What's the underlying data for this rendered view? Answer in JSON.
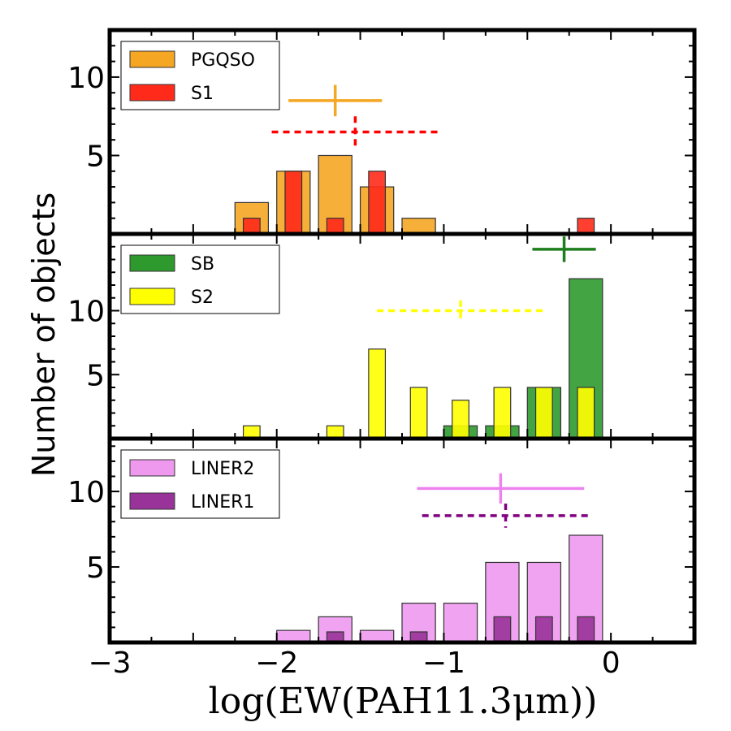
{
  "figure": {
    "ylabel": "Number of objects",
    "xlabel": "log(EW(PAH11.3μm))",
    "xlim": [
      -3,
      0.5
    ],
    "xticks": [
      -3,
      -2,
      -1,
      0
    ],
    "xtick_labels": [
      "−3",
      "−2",
      "−1",
      "0"
    ]
  },
  "chart_data": [
    {
      "type": "bar",
      "panel": "top",
      "ylim": [
        0,
        13
      ],
      "yticks": [
        5,
        10
      ],
      "ytick_labels": [
        "5",
        "10"
      ],
      "legend": {
        "placement": "top-left",
        "entries": [
          "PGQSO",
          "S1"
        ]
      },
      "bin_edges": [
        -2.25,
        -2.0,
        -1.75,
        -1.5,
        -1.25,
        -1.0
      ],
      "series": [
        {
          "name": "PGQSO",
          "color": "#f5a623",
          "style": "wide",
          "bars": [
            {
              "x0": -2.25,
              "x1": -2.05,
              "y": 2
            },
            {
              "x0": -2.0,
              "x1": -1.8,
              "y": 4
            },
            {
              "x0": -1.75,
              "x1": -1.55,
              "y": 5
            },
            {
              "x0": -1.5,
              "x1": -1.3,
              "y": 3
            },
            {
              "x0": -1.25,
              "x1": -1.05,
              "y": 1
            }
          ]
        },
        {
          "name": "S1",
          "color": "#ff2a1a",
          "style": "narrow",
          "bars": [
            {
              "x0": -2.2,
              "x1": -2.1,
              "y": 1
            },
            {
              "x0": -1.95,
              "x1": -1.85,
              "y": 4
            },
            {
              "x0": -1.7,
              "x1": -1.6,
              "y": 1
            },
            {
              "x0": -1.45,
              "x1": -1.35,
              "y": 4
            },
            {
              "x0": -0.2,
              "x1": -0.1,
              "y": 1
            }
          ]
        }
      ],
      "errorbars": [
        {
          "series": "PGQSO",
          "color": "#f5a623",
          "style": "solid",
          "x": -1.65,
          "y": 8.5,
          "xerr": 0.28,
          "yerr": 1.0
        },
        {
          "series": "S1",
          "color": "#ff0000",
          "style": "dashed",
          "x": -1.53,
          "y": 6.5,
          "xerr": 0.5,
          "yerr": 1.0
        }
      ]
    },
    {
      "type": "bar",
      "panel": "middle",
      "ylim": [
        0,
        16
      ],
      "yticks": [
        5,
        10
      ],
      "ytick_labels": [
        "5",
        "10"
      ],
      "legend": {
        "placement": "top-left",
        "entries": [
          "SB",
          "S2"
        ]
      },
      "series": [
        {
          "name": "SB",
          "color": "#2e9a2e",
          "style": "wide",
          "bars": [
            {
              "x0": -1.0,
              "x1": -0.8,
              "y": 1
            },
            {
              "x0": -0.75,
              "x1": -0.55,
              "y": 1
            },
            {
              "x0": -0.5,
              "x1": -0.3,
              "y": 4
            },
            {
              "x0": -0.25,
              "x1": -0.05,
              "y": 12.5
            }
          ]
        },
        {
          "name": "S2",
          "color": "#ffff00",
          "style": "narrow",
          "bars": [
            {
              "x0": -2.2,
              "x1": -2.1,
              "y": 1
            },
            {
              "x0": -1.7,
              "x1": -1.6,
              "y": 1
            },
            {
              "x0": -1.45,
              "x1": -1.35,
              "y": 7
            },
            {
              "x0": -1.2,
              "x1": -1.1,
              "y": 4
            },
            {
              "x0": -0.95,
              "x1": -0.85,
              "y": 3
            },
            {
              "x0": -0.7,
              "x1": -0.6,
              "y": 4
            },
            {
              "x0": -0.45,
              "x1": -0.35,
              "y": 4
            },
            {
              "x0": -0.2,
              "x1": -0.1,
              "y": 4
            }
          ]
        }
      ],
      "errorbars": [
        {
          "series": "SB",
          "color": "#1e7e1e",
          "style": "solid",
          "x": -0.28,
          "y": 14.8,
          "xerr": 0.19,
          "yerr": 1.0
        },
        {
          "series": "S2",
          "color": "#ffff00",
          "style": "dashed",
          "x": -0.9,
          "y": 10.0,
          "xerr": 0.5,
          "yerr": 0.8
        }
      ]
    },
    {
      "type": "bar",
      "panel": "bottom",
      "ylim": [
        0,
        13.5
      ],
      "yticks": [
        5,
        10
      ],
      "ytick_labels": [
        "5",
        "10"
      ],
      "legend": {
        "placement": "top-left",
        "entries": [
          "LINER2",
          "LINER1"
        ]
      },
      "series": [
        {
          "name": "LINER2",
          "color": "#ee99ee",
          "style": "wide",
          "bars": [
            {
              "x0": -2.0,
              "x1": -1.8,
              "y": 0.8
            },
            {
              "x0": -1.75,
              "x1": -1.55,
              "y": 1.7
            },
            {
              "x0": -1.5,
              "x1": -1.3,
              "y": 0.8
            },
            {
              "x0": -1.25,
              "x1": -1.05,
              "y": 2.6
            },
            {
              "x0": -1.0,
              "x1": -0.8,
              "y": 2.6
            },
            {
              "x0": -0.75,
              "x1": -0.55,
              "y": 5.3
            },
            {
              "x0": -0.5,
              "x1": -0.3,
              "y": 5.3
            },
            {
              "x0": -0.25,
              "x1": -0.05,
              "y": 7.1
            }
          ]
        },
        {
          "name": "LINER1",
          "color": "#993399",
          "style": "narrow",
          "bars": [
            {
              "x0": -1.7,
              "x1": -1.6,
              "y": 0.7
            },
            {
              "x0": -1.2,
              "x1": -1.1,
              "y": 0.7
            },
            {
              "x0": -0.7,
              "x1": -0.6,
              "y": 1.7
            },
            {
              "x0": -0.45,
              "x1": -0.35,
              "y": 1.7
            },
            {
              "x0": -0.2,
              "x1": -0.1,
              "y": 1.7
            }
          ]
        }
      ],
      "errorbars": [
        {
          "series": "LINER2",
          "color": "#ee82ee",
          "style": "solid",
          "x": -0.66,
          "y": 10.2,
          "xerr": 0.5,
          "yerr": 1.0
        },
        {
          "series": "LINER1",
          "color": "#800080",
          "style": "dashed",
          "x": -0.63,
          "y": 8.4,
          "xerr": 0.5,
          "yerr": 0.8
        }
      ]
    }
  ]
}
